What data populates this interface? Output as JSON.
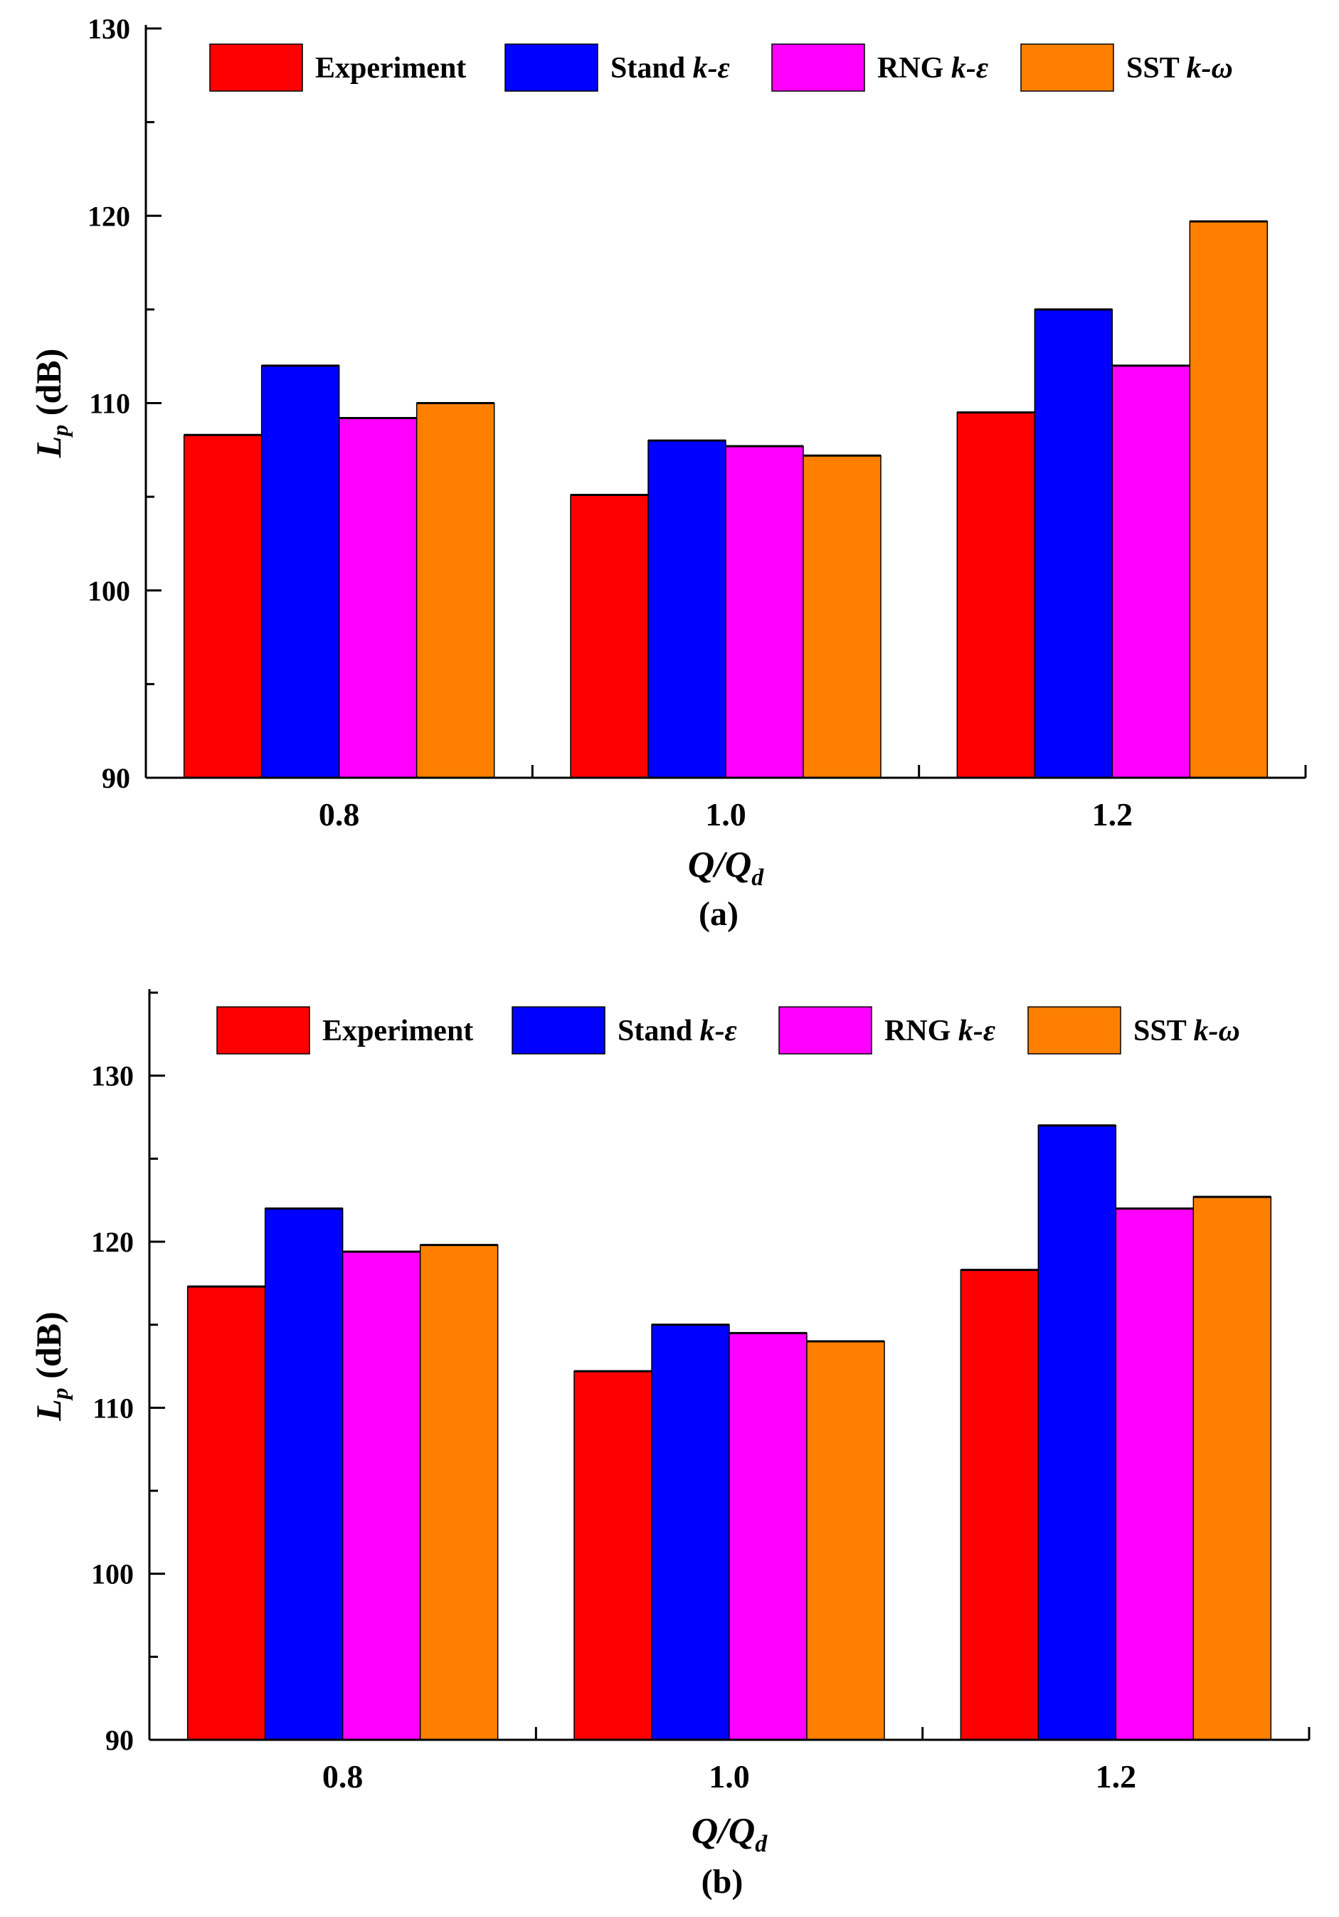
{
  "colors": {
    "experiment": "#ff0000",
    "stand": "#0000ff",
    "rng": "#ff00ff",
    "sst": "#ff8000",
    "axis": "#000000",
    "bar_edge": "#000000"
  },
  "legend_labels": [
    {
      "prefix": "Experiment",
      "italic": ""
    },
    {
      "prefix": "Stand ",
      "italic": "k-ε"
    },
    {
      "prefix": "RNG ",
      "italic": "k-ε"
    },
    {
      "prefix": "SST ",
      "italic": "k-ω"
    }
  ],
  "chart_data": [
    {
      "type": "bar",
      "panel_label": "(a)",
      "categories": [
        "0.8",
        "1.0",
        "1.2"
      ],
      "series": [
        {
          "name": "Experiment",
          "values": [
            108.3,
            105.1,
            109.5
          ]
        },
        {
          "name": "Stand k-ε",
          "values": [
            112.0,
            108.0,
            115.0
          ]
        },
        {
          "name": "RNG k-ε",
          "values": [
            109.2,
            107.7,
            112.0
          ]
        },
        {
          "name": "SST k-ω",
          "values": [
            110.0,
            107.2,
            119.7
          ]
        }
      ],
      "ylabel_main": "L",
      "ylabel_sub": "p",
      "ylabel_unit": " (dB)",
      "xlabel_main": "Q/Q",
      "xlabel_sub": "d",
      "ylim": [
        90,
        130
      ],
      "yticks": [
        90,
        100,
        110,
        120,
        130
      ],
      "legend_position": "top"
    },
    {
      "type": "bar",
      "panel_label": "(b)",
      "categories": [
        "0.8",
        "1.0",
        "1.2"
      ],
      "series": [
        {
          "name": "Experiment",
          "values": [
            117.3,
            112.2,
            118.3
          ]
        },
        {
          "name": "Stand k-ε",
          "values": [
            122.0,
            115.0,
            127.0
          ]
        },
        {
          "name": "RNG k-ε",
          "values": [
            119.4,
            114.5,
            122.0
          ]
        },
        {
          "name": "SST k-ω",
          "values": [
            119.8,
            114.0,
            122.7
          ]
        }
      ],
      "ylabel_main": "L",
      "ylabel_sub": "p",
      "ylabel_unit": " (dB)",
      "xlabel_main": "Q/Q",
      "xlabel_sub": "d",
      "ylim": [
        90,
        135
      ],
      "yticks": [
        90,
        100,
        110,
        120,
        130
      ],
      "legend_position": "top"
    }
  ]
}
